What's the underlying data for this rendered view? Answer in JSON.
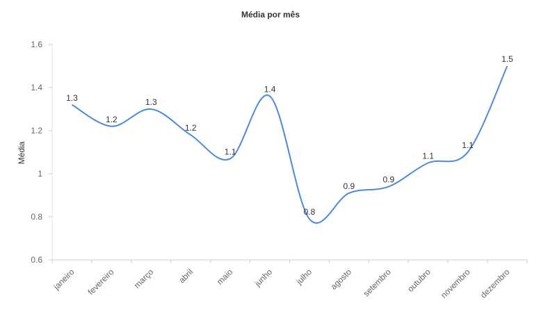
{
  "chart_data": {
    "type": "line",
    "title": "Média por mês",
    "xlabel": "",
    "ylabel": "Média",
    "categories": [
      "janeiro",
      "fevereiro",
      "março",
      "abril",
      "maio",
      "junho",
      "julho",
      "agosto",
      "setembro",
      "outubro",
      "novembro",
      "dezembro"
    ],
    "values": [
      1.32,
      1.22,
      1.3,
      1.18,
      1.07,
      1.36,
      0.79,
      0.91,
      0.94,
      1.05,
      1.1,
      1.5
    ],
    "data_labels": [
      "1.3",
      "1.2",
      "1.3",
      "1.2",
      "1.1",
      "1.4",
      "0.8",
      "0.9",
      "0.9",
      "1.1",
      "1.1",
      "1.5"
    ],
    "ylim": [
      0.6,
      1.6
    ],
    "yticks": [
      0.6,
      0.8,
      1,
      1.2,
      1.4,
      1.6
    ],
    "ytick_labels": [
      "0.6",
      "0.8",
      "1",
      "1.2",
      "1.4",
      "1.6"
    ],
    "grid": false,
    "legend": "none",
    "line_color": "#4a89dc",
    "smooth": true
  }
}
